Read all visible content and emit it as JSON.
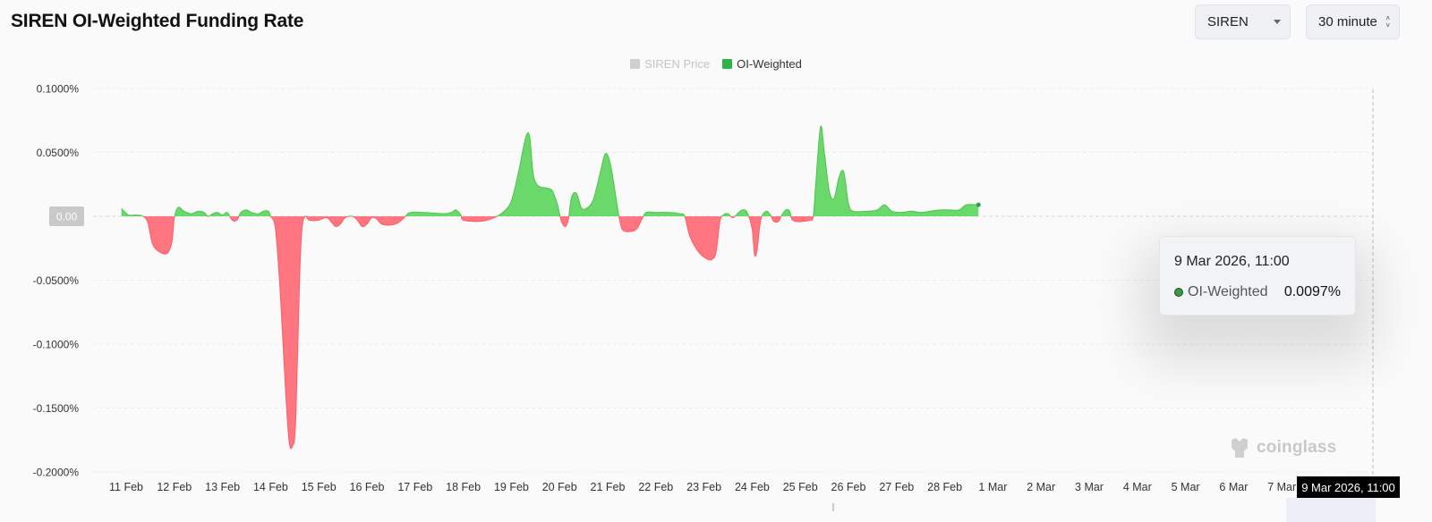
{
  "header": {
    "title": "SIREN OI-Weighted Funding Rate",
    "symbol_select": "SIREN",
    "interval_select": "30 minute"
  },
  "colors": {
    "positive": "#6ad86a",
    "negative": "#ff7580",
    "legend_price": "#cfcfcf",
    "legend_oi": "#2fb344"
  },
  "tooltip": {
    "time": "9 Mar 2026, 11:00",
    "series": "OI-Weighted",
    "value": "0.0097%"
  },
  "crosshair_label": "9 Mar 2026, 11:00",
  "watermark": "coinglass",
  "chart_data": {
    "type": "area",
    "legend": [
      "SIREN Price",
      "OI-Weighted"
    ],
    "legend_placement": "top-center",
    "y_axis": {
      "ticks": [
        0.1,
        0.05,
        0,
        -0.05,
        -0.1,
        -0.15,
        -0.2
      ],
      "tick_labels": [
        "0.1000%",
        "0.0500%",
        "0.00",
        "-0.0500%",
        "-0.1000%",
        "-0.1500%",
        "-0.2000%"
      ],
      "ylim": [
        -0.2,
        0.1
      ],
      "unit": "%"
    },
    "x_axis": {
      "ticks": [
        "11 Feb",
        "12 Feb",
        "13 Feb",
        "14 Feb",
        "15 Feb",
        "16 Feb",
        "17 Feb",
        "18 Feb",
        "19 Feb",
        "20 Feb",
        "21 Feb",
        "22 Feb",
        "23 Feb",
        "24 Feb",
        "25 Feb",
        "26 Feb",
        "27 Feb",
        "28 Feb",
        "1 Mar",
        "2 Mar",
        "3 Mar",
        "4 Mar",
        "5 Mar",
        "6 Mar",
        "7 Mar"
      ],
      "start": "10 Feb 2026, 20:00",
      "end": "9 Mar 2026, 11:00"
    },
    "grid": true,
    "series": [
      {
        "name": "OI-Weighted",
        "unit": "%",
        "points": [
          [
            -0.1,
            0.006
          ],
          [
            0.05,
            0.001
          ],
          [
            0.2,
            0.001
          ],
          [
            0.35,
            0.0
          ],
          [
            0.45,
            -0.005
          ],
          [
            0.55,
            -0.022
          ],
          [
            0.7,
            -0.028
          ],
          [
            0.85,
            -0.029
          ],
          [
            0.95,
            -0.02
          ],
          [
            1.0,
            -0.001
          ],
          [
            1.08,
            0.007
          ],
          [
            1.2,
            0.004
          ],
          [
            1.35,
            0.002
          ],
          [
            1.5,
            0.004
          ],
          [
            1.62,
            0.003
          ],
          [
            1.7,
            0.0
          ],
          [
            1.8,
            0.002
          ],
          [
            1.9,
            0.003
          ],
          [
            2.0,
            0.001
          ],
          [
            2.1,
            0.003
          ],
          [
            2.2,
            -0.003
          ],
          [
            2.3,
            -0.003
          ],
          [
            2.38,
            0.003
          ],
          [
            2.5,
            0.005
          ],
          [
            2.6,
            0.003
          ],
          [
            2.75,
            0.002
          ],
          [
            2.85,
            0.004
          ],
          [
            2.95,
            0.004
          ],
          [
            3.0,
            0.0
          ],
          [
            3.1,
            -0.01
          ],
          [
            3.2,
            -0.06
          ],
          [
            3.3,
            -0.13
          ],
          [
            3.38,
            -0.175
          ],
          [
            3.45,
            -0.18
          ],
          [
            3.52,
            -0.16
          ],
          [
            3.6,
            -0.05
          ],
          [
            3.65,
            -0.01
          ],
          [
            3.72,
            0.0
          ],
          [
            3.8,
            -0.003
          ],
          [
            4.0,
            -0.003
          ],
          [
            4.15,
            -0.001
          ],
          [
            4.25,
            -0.004
          ],
          [
            4.35,
            -0.008
          ],
          [
            4.45,
            -0.006
          ],
          [
            4.55,
            -0.001
          ],
          [
            4.7,
            0.0
          ],
          [
            4.8,
            -0.003
          ],
          [
            4.9,
            -0.008
          ],
          [
            5.0,
            -0.006
          ],
          [
            5.1,
            -0.001
          ],
          [
            5.2,
            -0.002
          ],
          [
            5.3,
            -0.006
          ],
          [
            5.45,
            -0.007
          ],
          [
            5.6,
            -0.006
          ],
          [
            5.72,
            -0.003
          ],
          [
            5.8,
            0.0
          ],
          [
            5.9,
            0.003
          ],
          [
            6.2,
            0.003
          ],
          [
            6.6,
            0.002
          ],
          [
            6.75,
            0.003
          ],
          [
            6.85,
            0.005
          ],
          [
            6.95,
            0.001
          ],
          [
            7.0,
            -0.003
          ],
          [
            7.3,
            -0.004
          ],
          [
            7.5,
            -0.003
          ],
          [
            7.7,
            0.0
          ],
          [
            7.85,
            0.004
          ],
          [
            8.0,
            0.012
          ],
          [
            8.15,
            0.035
          ],
          [
            8.3,
            0.062
          ],
          [
            8.38,
            0.062
          ],
          [
            8.45,
            0.034
          ],
          [
            8.55,
            0.024
          ],
          [
            8.75,
            0.022
          ],
          [
            8.85,
            0.02
          ],
          [
            8.95,
            0.01
          ],
          [
            9.0,
            0.002
          ],
          [
            9.05,
            -0.005
          ],
          [
            9.12,
            -0.008
          ],
          [
            9.18,
            -0.003
          ],
          [
            9.25,
            0.015
          ],
          [
            9.35,
            0.018
          ],
          [
            9.45,
            0.007
          ],
          [
            9.55,
            0.006
          ],
          [
            9.7,
            0.013
          ],
          [
            9.85,
            0.035
          ],
          [
            9.95,
            0.049
          ],
          [
            10.05,
            0.042
          ],
          [
            10.15,
            0.02
          ],
          [
            10.22,
            0.003
          ],
          [
            10.3,
            -0.01
          ],
          [
            10.45,
            -0.012
          ],
          [
            10.6,
            -0.01
          ],
          [
            10.7,
            -0.003
          ],
          [
            10.8,
            0.003
          ],
          [
            11.0,
            0.003
          ],
          [
            11.3,
            0.003
          ],
          [
            11.5,
            0.002
          ],
          [
            11.6,
            0.0
          ],
          [
            11.7,
            -0.015
          ],
          [
            11.85,
            -0.026
          ],
          [
            12.0,
            -0.032
          ],
          [
            12.15,
            -0.034
          ],
          [
            12.25,
            -0.028
          ],
          [
            12.33,
            -0.004
          ],
          [
            12.4,
            0.001
          ],
          [
            12.5,
            0.002
          ],
          [
            12.6,
            -0.001
          ],
          [
            12.75,
            0.004
          ],
          [
            12.85,
            0.005
          ],
          [
            12.92,
            0.001
          ],
          [
            13.0,
            -0.01
          ],
          [
            13.05,
            -0.03
          ],
          [
            13.1,
            -0.027
          ],
          [
            13.15,
            -0.01
          ],
          [
            13.2,
            0.0
          ],
          [
            13.3,
            0.004
          ],
          [
            13.38,
            0.001
          ],
          [
            13.45,
            -0.004
          ],
          [
            13.55,
            -0.004
          ],
          [
            13.6,
            0.0
          ],
          [
            13.7,
            0.005
          ],
          [
            13.78,
            0.004
          ],
          [
            13.82,
            -0.002
          ],
          [
            13.9,
            -0.004
          ],
          [
            14.05,
            -0.004
          ],
          [
            14.2,
            -0.003
          ],
          [
            14.27,
            0.0
          ],
          [
            14.32,
            0.025
          ],
          [
            14.42,
            0.07
          ],
          [
            14.5,
            0.05
          ],
          [
            14.6,
            0.02
          ],
          [
            14.7,
            0.014
          ],
          [
            14.8,
            0.03
          ],
          [
            14.9,
            0.035
          ],
          [
            15.0,
            0.01
          ],
          [
            15.1,
            0.004
          ],
          [
            15.4,
            0.004
          ],
          [
            15.6,
            0.005
          ],
          [
            15.75,
            0.009
          ],
          [
            15.9,
            0.004
          ],
          [
            16.1,
            0.003
          ],
          [
            16.3,
            0.004
          ],
          [
            16.5,
            0.003
          ],
          [
            16.7,
            0.004
          ],
          [
            16.9,
            0.005
          ],
          [
            17.1,
            0.005
          ],
          [
            17.3,
            0.005
          ],
          [
            17.45,
            0.009
          ],
          [
            17.7,
            0.009
          ]
        ]
      }
    ]
  }
}
